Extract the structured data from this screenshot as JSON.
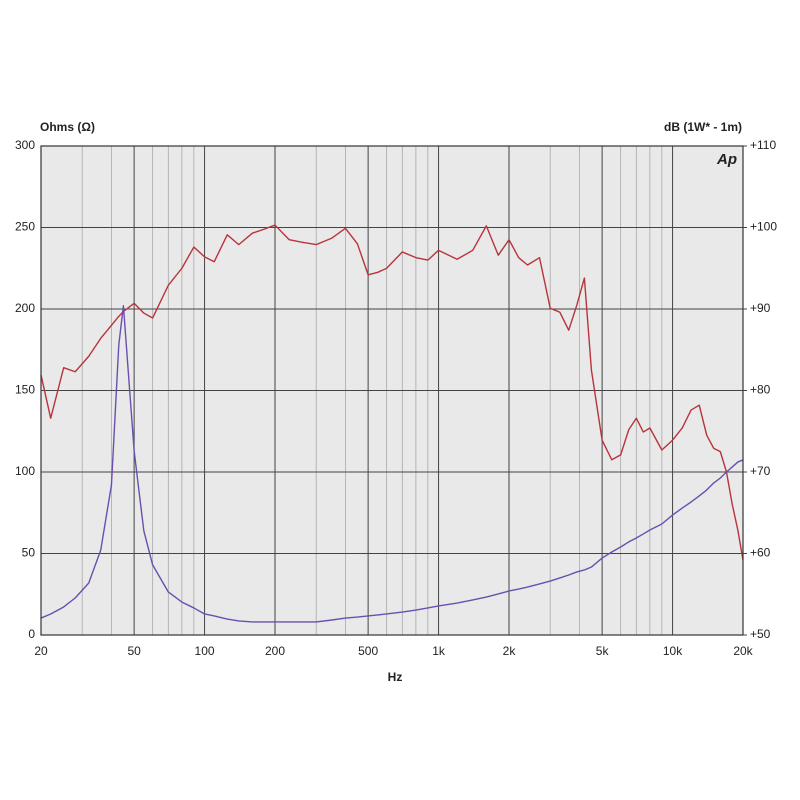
{
  "chart_data": {
    "type": "line",
    "x_label": "Hz",
    "y_label": "Ohms (Ω)",
    "y2_label": "dB (1W* - 1m)",
    "logo": "Ap",
    "xlog": true,
    "grid": true,
    "xlim": [
      20,
      20000
    ],
    "xticks": [
      20,
      50,
      100,
      200,
      500,
      {
        "value": 1000,
        "label": "1k"
      },
      {
        "value": 2000,
        "label": "2k"
      },
      {
        "value": 5000,
        "label": "5k"
      },
      {
        "value": 10000,
        "label": "10k"
      },
      {
        "value": 20000,
        "label": "20k"
      }
    ],
    "xminorticks": [
      30,
      40,
      60,
      70,
      80,
      90,
      300,
      400,
      600,
      700,
      800,
      900,
      3000,
      4000,
      6000,
      7000,
      8000,
      9000
    ],
    "ylim": [
      0,
      300
    ],
    "yticks": [
      0,
      50,
      100,
      150,
      200,
      250,
      300
    ],
    "y2lim": [
      50,
      110
    ],
    "y2ticks": [
      {
        "value": 50,
        "label": "+50"
      },
      {
        "value": 60,
        "label": "+60"
      },
      {
        "value": 70,
        "label": "+70"
      },
      {
        "value": 80,
        "label": "+80"
      },
      {
        "value": 90,
        "label": "+90"
      },
      {
        "value": 100,
        "label": "+100"
      },
      {
        "value": 110,
        "label": "+110"
      }
    ],
    "x": [
      20,
      22,
      25,
      28,
      32,
      36,
      40,
      43,
      45,
      50,
      55,
      60,
      70,
      80,
      90,
      100,
      110,
      125,
      140,
      160,
      180,
      200,
      230,
      260,
      300,
      350,
      400,
      450,
      500,
      550,
      600,
      700,
      800,
      900,
      1000,
      1200,
      1400,
      1600,
      1800,
      2000,
      2200,
      2400,
      2700,
      3000,
      3300,
      3600,
      3900,
      4200,
      4500,
      5000,
      5500,
      6000,
      6500,
      7000,
      7500,
      8000,
      9000,
      10000,
      11000,
      12000,
      13000,
      14000,
      15000,
      16000,
      17000,
      18000,
      19000,
      20000
    ],
    "series": [
      {
        "color": "#b8343c",
        "axis": "y2",
        "values": [
          81.9,
          76.6,
          82.8,
          82.3,
          84.2,
          86.4,
          88.0,
          89.1,
          89.7,
          90.7,
          89.5,
          88.9,
          92.9,
          95.0,
          97.6,
          96.4,
          95.8,
          99.1,
          97.9,
          99.3,
          99.8,
          100.3,
          98.5,
          98.2,
          97.9,
          98.7,
          99.9,
          98.0,
          94.2,
          94.5,
          95.0,
          97.0,
          96.3,
          96.0,
          97.2,
          96.1,
          97.2,
          100.2,
          96.6,
          98.5,
          96.3,
          95.4,
          96.3,
          90.1,
          89.6,
          87.4,
          90.5,
          93.8,
          82.5,
          73.9,
          71.5,
          72.1,
          75.2,
          76.6,
          74.9,
          75.4,
          72.7,
          73.9,
          75.4,
          77.6,
          78.2,
          74.5,
          72.9,
          72.5,
          70.0,
          66.0,
          62.9,
          59.2
        ]
      },
      {
        "color": "#6a4fb0",
        "axis": "y",
        "values": [
          10.4,
          12.9,
          17.2,
          22.7,
          31.9,
          52.1,
          92,
          178,
          202,
          113,
          64,
          43,
          26.4,
          20.2,
          16.6,
          12.9,
          11.7,
          9.8,
          8.6,
          8.0,
          8.0,
          8.0,
          8.0,
          8.0,
          8.0,
          9.2,
          10.4,
          11.0,
          11.7,
          12.3,
          12.9,
          14.1,
          15.3,
          16.6,
          17.8,
          19.6,
          21.5,
          23.3,
          25.2,
          27.0,
          28.2,
          29.4,
          31.3,
          33.1,
          35.0,
          36.8,
          38.7,
          39.9,
          41.7,
          47.2,
          50.9,
          54.0,
          57.1,
          59.5,
          62.0,
          64.4,
          68.1,
          73.6,
          77.9,
          81.6,
          85.3,
          89.0,
          93.3,
          96.3,
          100.0,
          103.1,
          106.1,
          107.4
        ]
      }
    ]
  }
}
